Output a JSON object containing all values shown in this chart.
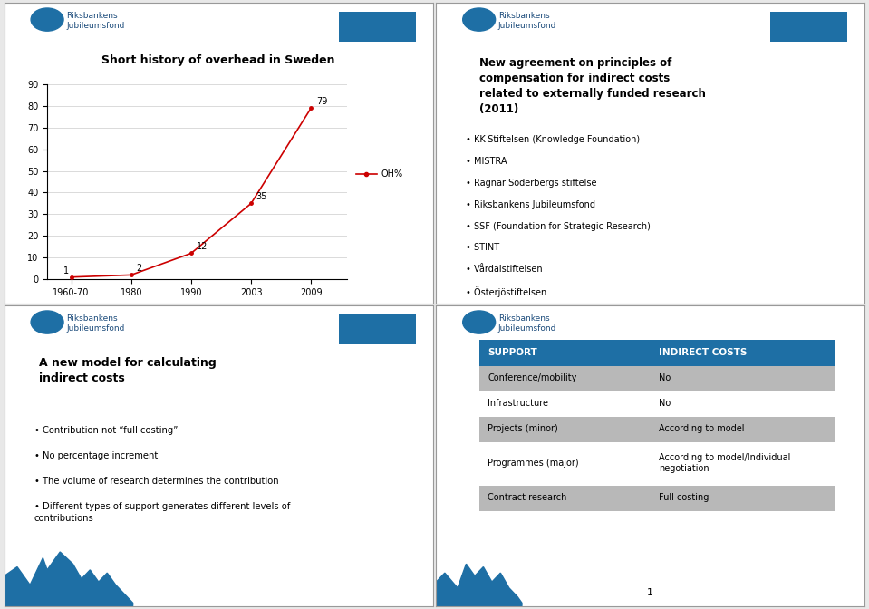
{
  "bg_color": "#e8e8e8",
  "panel_color": "#ffffff",
  "border_color": "#999999",
  "blue_header": "#1e6fa5",
  "gray_row": "#b8b8b8",
  "white_row": "#ffffff",
  "chart_title": "Short history of overhead in Sweden",
  "chart_x_labels": [
    "1960-70",
    "1980",
    "1990",
    "2003",
    "2009"
  ],
  "chart_y_values": [
    1,
    2,
    12,
    35,
    79
  ],
  "chart_line_color": "#cc0000",
  "chart_legend_label": "OH%",
  "chart_ylim": [
    0,
    90
  ],
  "chart_yticks": [
    0,
    10,
    20,
    30,
    40,
    50,
    60,
    70,
    80,
    90
  ],
  "panel2_title": "New agreement on principles of\ncompensation for indirect costs\nrelated to externally funded research\n(2011)",
  "panel2_bullets": [
    "KK-Stiftelsen (Knowledge Foundation)",
    "MISTRA",
    "Ragnar Söderbergs stiftelse",
    "Riksbankens Jubileumsfond",
    "SSF (Foundation for Strategic Research)",
    "STINT",
    "Vårdalstiftelsen",
    "Österjöstiftelsen"
  ],
  "panel3_title": "A new model for calculating\nindirect costs",
  "panel3_bullets": [
    "Contribution not “full costing”",
    "No percentage increment",
    "The volume of research determines the contribution",
    "Different types of support generates different levels of\ncontributions"
  ],
  "table_headers": [
    "SUPPORT",
    "INDIRECT COSTS"
  ],
  "table_rows": [
    [
      "Conference/mobility",
      "No"
    ],
    [
      "Infrastructure",
      "No"
    ],
    [
      "Projects (minor)",
      "According to model"
    ],
    [
      "Programmes (major)",
      "According to model/Individual\nnegotiation"
    ],
    [
      "Contract research",
      "Full costing"
    ]
  ],
  "table_row_shading": [
    "gray",
    "white",
    "gray",
    "white",
    "gray"
  ],
  "page_number": "1",
  "logo_text": "Riksbankens\nJubileumsfond",
  "logo_color": "#1a4a7a"
}
